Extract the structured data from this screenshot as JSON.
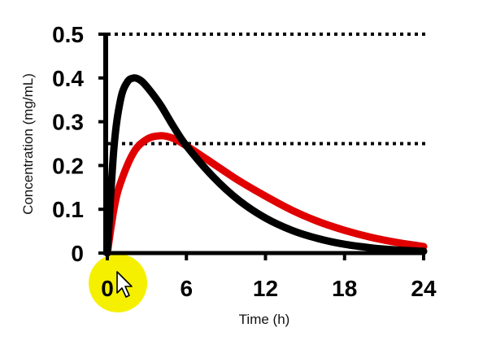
{
  "chart_data": {
    "type": "line",
    "xlabel": "Time (h)",
    "ylabel": "Concentration (mg/mL)",
    "xlim": [
      0,
      24
    ],
    "ylim": [
      0,
      0.5
    ],
    "x_ticks": [
      "0",
      "6",
      "12",
      "18",
      "24"
    ],
    "y_ticks": [
      "0",
      "0.1",
      "0.2",
      "0.3",
      "0.4",
      "0.5"
    ],
    "grid": false,
    "reference_lines": [
      {
        "y": 0.5,
        "style": "dotted",
        "color": "#000000"
      },
      {
        "y": 0.25,
        "style": "dotted",
        "color": "#000000"
      }
    ],
    "series": [
      {
        "color": "#000000",
        "x": [
          0,
          0.5,
          1,
          1.5,
          2,
          2.5,
          3,
          4,
          5,
          6,
          8,
          10,
          12,
          14,
          16,
          18,
          20,
          22,
          24
        ],
        "y": [
          0,
          0.24,
          0.35,
          0.39,
          0.4,
          0.395,
          0.38,
          0.34,
          0.29,
          0.245,
          0.175,
          0.12,
          0.08,
          0.052,
          0.033,
          0.02,
          0.012,
          0.007,
          0.004
        ]
      },
      {
        "color": "#e00000",
        "x": [
          0,
          0.5,
          1,
          2,
          3,
          4,
          5,
          6,
          8,
          10,
          12,
          14,
          16,
          18,
          20,
          22,
          24
        ],
        "y": [
          0,
          0.1,
          0.16,
          0.23,
          0.26,
          0.268,
          0.262,
          0.245,
          0.205,
          0.165,
          0.13,
          0.098,
          0.072,
          0.052,
          0.036,
          0.024,
          0.015
        ]
      }
    ]
  },
  "cursor": {
    "icon": "mouse-pointer-icon",
    "highlight_color": "#f5f000"
  }
}
